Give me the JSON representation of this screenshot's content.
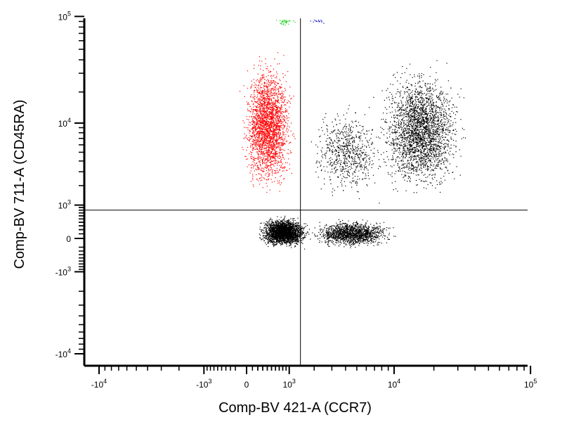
{
  "chart_data": {
    "type": "scatter",
    "title": "",
    "xlabel": "Comp-BV 421-A (CCR7)",
    "ylabel": "Comp-BV 711-A (CD45RA)",
    "x_scale": "biexponential",
    "y_scale": "biexponential",
    "xlim": [
      -15000,
      200000
    ],
    "ylim": [
      -15000,
      200000
    ],
    "x_ticks": [
      {
        "value": -10000,
        "label": "-10",
        "exp": "4"
      },
      {
        "value": -1000,
        "label": "-10",
        "exp": "3"
      },
      {
        "value": 0,
        "label": "0",
        "exp": ""
      },
      {
        "value": 1000,
        "label": "10",
        "exp": "3"
      },
      {
        "value": 10000,
        "label": "10",
        "exp": "4"
      },
      {
        "value": 100000,
        "label": "10",
        "exp": "5"
      }
    ],
    "y_ticks": [
      {
        "value": 100000,
        "label": "10",
        "exp": "5"
      },
      {
        "value": 10000,
        "label": "10",
        "exp": "4"
      },
      {
        "value": 1000,
        "label": "10",
        "exp": "3"
      },
      {
        "value": 0,
        "label": "0",
        "exp": ""
      },
      {
        "value": -1000,
        "label": "-10",
        "exp": "3"
      },
      {
        "value": -10000,
        "label": "-10",
        "exp": "4"
      }
    ],
    "quadrant_gate": {
      "x": 1400,
      "y": 800
    },
    "grid": false,
    "legend": "none",
    "series": [
      {
        "color": "#000000",
        "x_range": [
          100,
          2000
        ],
        "y_range": [
          -300,
          700
        ]
      },
      {
        "color": "#000000",
        "x_range": [
          1400,
          12000
        ],
        "y_range": [
          -300,
          600
        ]
      },
      {
        "color": "#000000",
        "x_range": [
          6000,
          40000
        ],
        "y_range": [
          800,
          50000
        ]
      },
      {
        "color": "#000000",
        "x_range": [
          1400,
          10000
        ],
        "y_range": [
          800,
          20000
        ]
      },
      {
        "color": "#ff0000",
        "x_range": [
          -200,
          1400
        ],
        "y_range": [
          800,
          60000
        ]
      },
      {
        "color": "#00cc00",
        "x_range": [
          500,
          1400
        ],
        "y_range": [
          80000,
          110000
        ]
      },
      {
        "color": "#0000cc",
        "x_range": [
          1400,
          3000
        ],
        "y_range": [
          80000,
          110000
        ]
      }
    ]
  }
}
